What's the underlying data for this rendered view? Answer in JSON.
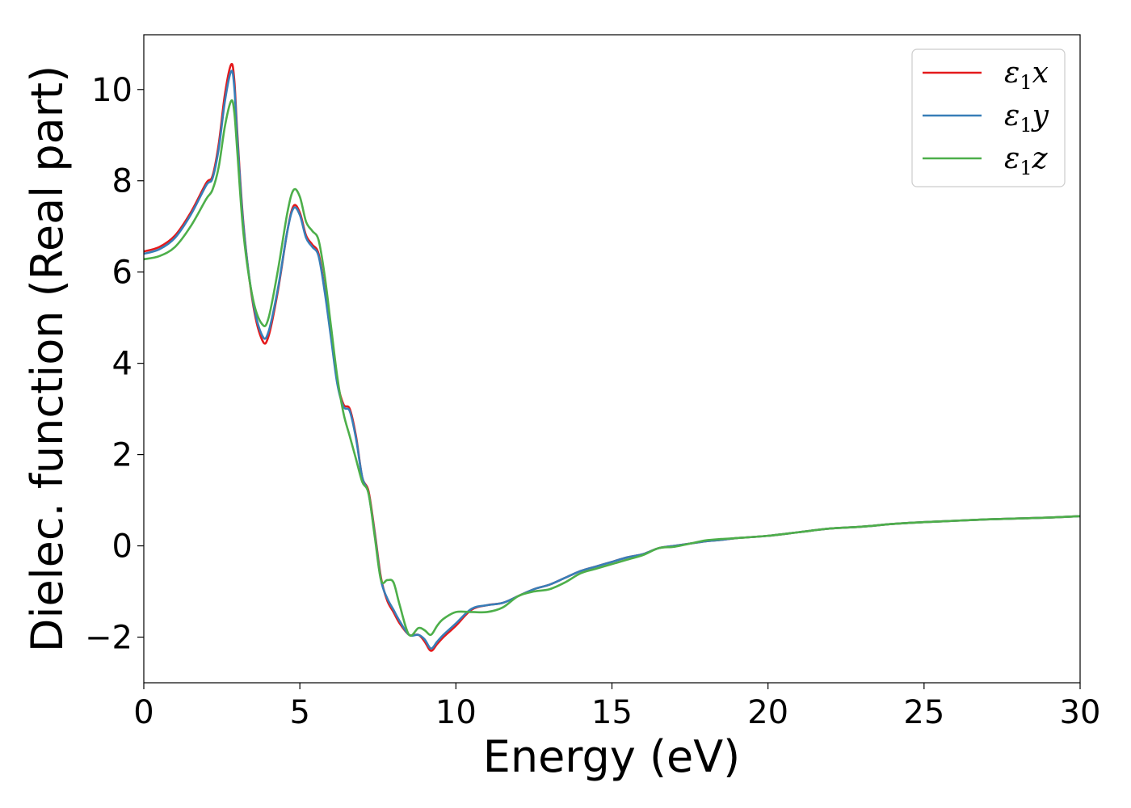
{
  "chart_data": {
    "type": "line",
    "title": "",
    "xlabel": "Energy (eV)",
    "ylabel": "Dielec. function (Real part)",
    "xlim": [
      0,
      30
    ],
    "ylim": [
      -3,
      11.2
    ],
    "xticks": [
      0,
      5,
      10,
      15,
      20,
      25,
      30
    ],
    "yticks": [
      -2,
      0,
      2,
      4,
      6,
      8,
      10
    ],
    "xtick_labels": [
      "0",
      "5",
      "10",
      "15",
      "20",
      "25",
      "30"
    ],
    "ytick_labels": [
      "−2",
      "0",
      "2",
      "4",
      "6",
      "8",
      "10"
    ],
    "grid": false,
    "legend_position": "top-right",
    "series": [
      {
        "name": "ε₁x",
        "legend_base": "ε",
        "legend_sub": "1",
        "legend_var": "x",
        "color": "#e41a1c",
        "x": [
          0,
          0.5,
          1.0,
          1.5,
          2.0,
          2.2,
          2.4,
          2.6,
          2.8,
          2.9,
          3.0,
          3.2,
          3.5,
          3.8,
          4.0,
          4.3,
          4.6,
          4.8,
          5.0,
          5.2,
          5.4,
          5.6,
          5.8,
          6.0,
          6.2,
          6.4,
          6.6,
          6.8,
          7.0,
          7.2,
          7.4,
          7.6,
          7.8,
          8.0,
          8.2,
          8.5,
          8.8,
          9.0,
          9.2,
          9.4,
          9.6,
          10.0,
          10.5,
          11.0,
          11.5,
          12.0,
          12.5,
          13.0,
          13.5,
          14.0,
          14.5,
          15.0,
          15.5,
          16.0,
          16.5,
          17.0,
          17.5,
          18.0,
          18.5,
          19.0,
          20.0,
          21.0,
          22.0,
          23.0,
          24.0,
          25.0,
          26.0,
          27.0,
          28.0,
          29.0,
          30.0
        ],
        "y": [
          6.45,
          6.55,
          6.8,
          7.3,
          7.95,
          8.1,
          8.8,
          9.9,
          10.55,
          10.2,
          9.0,
          7.0,
          5.3,
          4.5,
          4.6,
          5.6,
          6.9,
          7.45,
          7.3,
          6.8,
          6.6,
          6.4,
          5.6,
          4.6,
          3.6,
          3.1,
          3.0,
          2.4,
          1.5,
          1.2,
          0.3,
          -0.7,
          -1.2,
          -1.45,
          -1.7,
          -1.95,
          -1.95,
          -2.1,
          -2.3,
          -2.15,
          -2.0,
          -1.75,
          -1.4,
          -1.3,
          -1.25,
          -1.1,
          -0.95,
          -0.85,
          -0.7,
          -0.55,
          -0.45,
          -0.35,
          -0.25,
          -0.18,
          -0.05,
          0.0,
          0.05,
          0.1,
          0.13,
          0.17,
          0.22,
          0.3,
          0.38,
          0.42,
          0.48,
          0.52,
          0.55,
          0.58,
          0.6,
          0.62,
          0.65
        ]
      },
      {
        "name": "ε₁y",
        "legend_base": "ε",
        "legend_sub": "1",
        "legend_var": "y",
        "color": "#377eb8",
        "x": [
          0,
          0.5,
          1.0,
          1.5,
          2.0,
          2.2,
          2.4,
          2.6,
          2.8,
          2.9,
          3.0,
          3.2,
          3.5,
          3.8,
          4.0,
          4.3,
          4.6,
          4.8,
          5.0,
          5.2,
          5.4,
          5.6,
          5.8,
          6.0,
          6.2,
          6.4,
          6.6,
          6.8,
          7.0,
          7.2,
          7.4,
          7.6,
          7.8,
          8.0,
          8.2,
          8.5,
          8.8,
          9.0,
          9.2,
          9.4,
          9.6,
          10.0,
          10.5,
          11.0,
          11.5,
          12.0,
          12.5,
          13.0,
          13.5,
          14.0,
          14.5,
          15.0,
          15.5,
          16.0,
          16.5,
          17.0,
          17.5,
          18.0,
          18.5,
          19.0,
          20.0,
          21.0,
          22.0,
          23.0,
          24.0,
          25.0,
          26.0,
          27.0,
          28.0,
          29.0,
          30.0
        ],
        "y": [
          6.4,
          6.5,
          6.75,
          7.25,
          7.9,
          8.05,
          8.7,
          9.75,
          10.4,
          10.05,
          8.9,
          6.95,
          5.35,
          4.6,
          4.7,
          5.65,
          6.9,
          7.4,
          7.25,
          6.75,
          6.55,
          6.35,
          5.55,
          4.55,
          3.55,
          3.05,
          2.95,
          2.35,
          1.5,
          1.15,
          0.25,
          -0.75,
          -1.15,
          -1.4,
          -1.65,
          -1.95,
          -1.95,
          -2.05,
          -2.25,
          -2.1,
          -1.95,
          -1.7,
          -1.38,
          -1.3,
          -1.25,
          -1.1,
          -0.95,
          -0.85,
          -0.7,
          -0.55,
          -0.45,
          -0.35,
          -0.25,
          -0.18,
          -0.05,
          0.0,
          0.05,
          0.1,
          0.13,
          0.17,
          0.22,
          0.3,
          0.38,
          0.42,
          0.48,
          0.52,
          0.55,
          0.58,
          0.6,
          0.62,
          0.65
        ]
      },
      {
        "name": "ε₁z",
        "legend_base": "ε",
        "legend_sub": "1",
        "legend_var": "z",
        "color": "#4daf4a",
        "x": [
          0,
          0.5,
          1.0,
          1.5,
          2.0,
          2.2,
          2.4,
          2.6,
          2.8,
          2.9,
          3.0,
          3.2,
          3.5,
          3.8,
          4.0,
          4.3,
          4.6,
          4.8,
          5.0,
          5.2,
          5.4,
          5.6,
          5.8,
          6.0,
          6.2,
          6.4,
          6.6,
          6.8,
          7.0,
          7.2,
          7.4,
          7.6,
          7.8,
          8.0,
          8.2,
          8.5,
          8.8,
          9.0,
          9.2,
          9.4,
          9.6,
          10.0,
          10.5,
          11.0,
          11.5,
          12.0,
          12.5,
          13.0,
          13.5,
          14.0,
          14.5,
          15.0,
          15.5,
          16.0,
          16.5,
          17.0,
          17.5,
          18.0,
          18.5,
          19.0,
          20.0,
          21.0,
          22.0,
          23.0,
          24.0,
          25.0,
          26.0,
          27.0,
          28.0,
          29.0,
          30.0
        ],
        "y": [
          6.28,
          6.35,
          6.55,
          7.0,
          7.6,
          7.8,
          8.3,
          9.2,
          9.75,
          9.5,
          8.6,
          6.8,
          5.4,
          4.85,
          5.0,
          6.05,
          7.3,
          7.8,
          7.65,
          7.1,
          6.9,
          6.7,
          5.9,
          4.8,
          3.7,
          2.9,
          2.4,
          1.9,
          1.4,
          1.15,
          0.2,
          -0.75,
          -0.75,
          -0.8,
          -1.3,
          -1.95,
          -1.8,
          -1.85,
          -1.95,
          -1.75,
          -1.6,
          -1.45,
          -1.45,
          -1.45,
          -1.35,
          -1.1,
          -1.0,
          -0.95,
          -0.8,
          -0.6,
          -0.5,
          -0.4,
          -0.3,
          -0.2,
          -0.05,
          -0.02,
          0.05,
          0.12,
          0.15,
          0.17,
          0.22,
          0.3,
          0.38,
          0.42,
          0.48,
          0.52,
          0.55,
          0.58,
          0.6,
          0.62,
          0.65
        ]
      }
    ]
  }
}
